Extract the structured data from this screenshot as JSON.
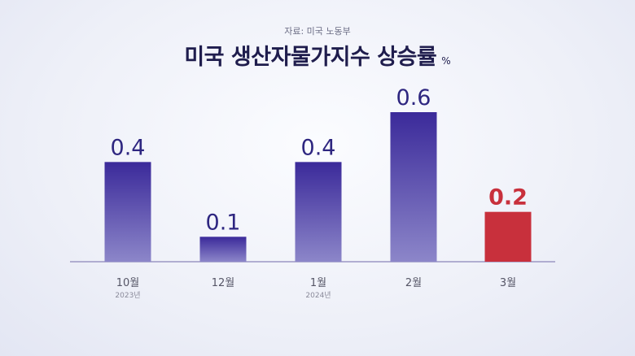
{
  "chart_data": {
    "type": "bar",
    "source": "자료: 미국 노동부",
    "title": "미국 생산자물가지수 상승률",
    "unit": "%",
    "categories": [
      "10월",
      "12월",
      "1월",
      "2월",
      "3월"
    ],
    "sublabels": [
      "2023년",
      "",
      "2024년",
      "",
      ""
    ],
    "values": [
      0.4,
      0.1,
      0.4,
      0.6,
      0.2
    ],
    "value_labels": [
      "0.4",
      "0.1",
      "0.4",
      "0.6",
      "0.2"
    ],
    "highlight_index": 4,
    "ylim": [
      0,
      0.6
    ],
    "colors": {
      "bar_top": "#3b2a9a",
      "bar_bottom": "#8c86c9",
      "highlight": "#c8303c",
      "value_text": "#2e2680",
      "highlight_text": "#c8303c",
      "axis": "#9b97c4",
      "category_text": "#555566",
      "sublabel_text": "#8a8a9a"
    }
  }
}
